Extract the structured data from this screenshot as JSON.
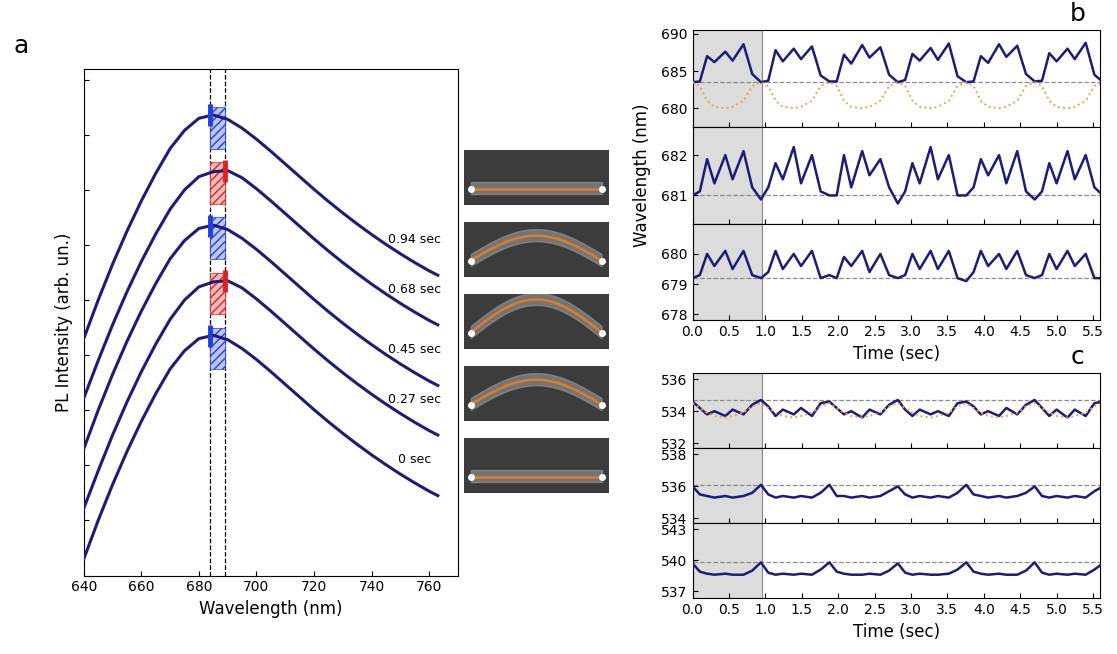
{
  "chart_data": [
    {
      "type": "line",
      "panel": "a",
      "x_label": "Wavelength (nm)",
      "y_label": "PL Intensity (arb. un.)",
      "xlim": [
        640,
        770
      ],
      "xticks": [
        640,
        660,
        680,
        700,
        720,
        740,
        760
      ],
      "ylim": [
        0,
        9.2
      ],
      "yticks": [
        0,
        1,
        2,
        3,
        4,
        5,
        6,
        7,
        8,
        9
      ],
      "tick_labels": "x",
      "reference_lines": [
        684,
        689
      ],
      "x": [
        640,
        645,
        650,
        655,
        660,
        665,
        670,
        675,
        680,
        685,
        690,
        695,
        700,
        705,
        710,
        715,
        720,
        725,
        730,
        735,
        740,
        745,
        750,
        755,
        760,
        763
      ],
      "series": [
        {
          "name": "0 sec",
          "type": "line",
          "color": "#1c1c7a",
          "values": [
            0.3,
            1.0,
            1.65,
            2.25,
            2.8,
            3.3,
            3.75,
            4.08,
            4.3,
            4.36,
            4.28,
            4.12,
            3.92,
            3.7,
            3.47,
            3.24,
            3.01,
            2.79,
            2.58,
            2.38,
            2.19,
            2.01,
            1.84,
            1.68,
            1.53,
            1.45
          ]
        },
        {
          "name": "0.27 sec",
          "type": "line",
          "color": "#1c1c7a",
          "values": [
            1.22,
            1.9,
            2.55,
            3.15,
            3.7,
            4.2,
            4.65,
            5.0,
            5.24,
            5.33,
            5.35,
            5.22,
            5.02,
            4.8,
            4.57,
            4.34,
            4.11,
            3.89,
            3.68,
            3.48,
            3.29,
            3.11,
            2.94,
            2.78,
            2.63,
            2.55
          ]
        },
        {
          "name": "0.45 sec",
          "type": "line",
          "color": "#1c1c7a",
          "values": [
            2.3,
            3.0,
            3.65,
            4.25,
            4.8,
            5.3,
            5.75,
            6.08,
            6.3,
            6.36,
            6.28,
            6.12,
            5.92,
            5.7,
            5.47,
            5.24,
            5.01,
            4.79,
            4.58,
            4.38,
            4.19,
            4.01,
            3.84,
            3.68,
            3.53,
            3.45
          ]
        },
        {
          "name": "0.68 sec",
          "type": "line",
          "color": "#1c1c7a",
          "values": [
            3.22,
            3.9,
            4.55,
            5.15,
            5.7,
            6.2,
            6.65,
            7.0,
            7.24,
            7.33,
            7.35,
            7.22,
            7.02,
            6.8,
            6.57,
            6.34,
            6.11,
            5.89,
            5.68,
            5.48,
            5.29,
            5.11,
            4.94,
            4.78,
            4.63,
            4.55
          ]
        },
        {
          "name": "0.94 sec",
          "type": "line",
          "color": "#1c1c7a",
          "values": [
            4.3,
            5.0,
            5.65,
            6.25,
            6.8,
            7.3,
            7.75,
            8.08,
            8.3,
            8.36,
            8.28,
            8.12,
            7.92,
            7.7,
            7.47,
            7.24,
            7.01,
            6.79,
            6.58,
            6.38,
            6.19,
            6.01,
            5.84,
            5.68,
            5.53,
            5.45
          ]
        },
        {
          "type": "scatter",
          "marker": "vline",
          "color": "#1f3fe0",
          "x": [
            684,
            684,
            684
          ],
          "values": [
            4.35,
            6.35,
            8.35
          ]
        },
        {
          "type": "scatter",
          "marker": "vline",
          "color": "#e02020",
          "x": [
            689,
            689
          ],
          "values": [
            5.35,
            7.35
          ]
        }
      ]
    },
    {
      "type": "line",
      "panel": "b",
      "x_label": "Time (sec)",
      "y_label": "Wavelength (nm)",
      "xlim": [
        0,
        5.6
      ],
      "xticks": [
        {
          "value": 0,
          "label": "0.0"
        },
        {
          "value": 0.5,
          "label": "0.5"
        },
        {
          "value": 1,
          "label": "1.0"
        },
        {
          "value": 1.5,
          "label": "1.5"
        },
        {
          "value": 2,
          "label": "2.0"
        },
        {
          "value": 2.5,
          "label": "2.5"
        },
        {
          "value": 3,
          "label": "3.0"
        },
        {
          "value": 3.5,
          "label": "3.5"
        },
        {
          "value": 4,
          "label": "4.0"
        },
        {
          "value": 4.5,
          "label": "4.5"
        },
        {
          "value": 5,
          "label": "5.0"
        },
        {
          "value": 5.5,
          "label": "5.5"
        }
      ],
      "highlight": [
        0,
        0.95
      ],
      "x": [
        0,
        0.1,
        0.2,
        0.3,
        0.45,
        0.55,
        0.7,
        0.82,
        0.94,
        1.04,
        1.14,
        1.24,
        1.39,
        1.49,
        1.64,
        1.76,
        1.88,
        1.98,
        2.08,
        2.18,
        2.33,
        2.43,
        2.58,
        2.7,
        2.82,
        2.92,
        3.02,
        3.12,
        3.27,
        3.37,
        3.52,
        3.64,
        3.76,
        3.86,
        3.96,
        4.06,
        4.21,
        4.31,
        4.46,
        4.58,
        4.7,
        4.8,
        4.9,
        5.0,
        5.15,
        5.25,
        5.4,
        5.52,
        5.64
      ],
      "subplots": [
        {
          "ylim": [
            677.5,
            690.5
          ],
          "yticks": [
            680,
            685,
            690
          ],
          "baseline": 683.5,
          "tick_labels": "y",
          "series": [
            {
              "color": "#1c1c7a",
              "line_style": "solid",
              "values": [
                683.5,
                683.6,
                687.0,
                686.2,
                687.6,
                686.4,
                688.6,
                684.6,
                683.5,
                683.7,
                687.8,
                686.3,
                688.0,
                686.6,
                688.3,
                684.4,
                683.6,
                683.6,
                687.2,
                686.0,
                688.5,
                686.8,
                688.2,
                684.5,
                683.5,
                683.8,
                687.3,
                686.4,
                688.1,
                686.5,
                688.7,
                684.3,
                683.5,
                683.6,
                687.0,
                686.1,
                688.6,
                686.9,
                688.4,
                684.6,
                683.6,
                683.7,
                687.4,
                686.3,
                688.0,
                686.6,
                688.8,
                684.5,
                683.5
              ]
            },
            {
              "color": "#f5a03c",
              "line_style": "dotted",
              "values": [
                683.5,
                683.0,
                681.0,
                680.2,
                680.0,
                680.2,
                681.0,
                683.0,
                683.5,
                683.0,
                681.0,
                680.2,
                680.0,
                680.2,
                681.0,
                683.0,
                683.5,
                683.0,
                681.0,
                680.2,
                680.0,
                680.2,
                681.0,
                683.0,
                683.5,
                683.0,
                681.0,
                680.2,
                680.0,
                680.2,
                681.0,
                683.0,
                683.5,
                683.0,
                681.0,
                680.2,
                680.0,
                680.2,
                681.0,
                683.0,
                683.5,
                683.0,
                681.0,
                680.2,
                680.0,
                680.2,
                681.0,
                683.0,
                683.5
              ]
            }
          ]
        },
        {
          "ylim": [
            680.3,
            682.7
          ],
          "yticks": [
            681,
            682
          ],
          "baseline": 681.0,
          "tick_labels": "y",
          "series": [
            {
              "color": "#1c1c7a",
              "line_style": "solid",
              "values": [
                681.0,
                681.1,
                681.9,
                681.3,
                682.0,
                681.4,
                682.1,
                681.2,
                680.9,
                681.2,
                681.8,
                681.4,
                682.2,
                681.3,
                682.0,
                681.1,
                681.0,
                681.0,
                682.0,
                681.2,
                682.1,
                681.5,
                681.9,
                681.2,
                680.8,
                681.1,
                681.8,
                681.3,
                682.2,
                681.4,
                682.0,
                681.0,
                681.0,
                681.2,
                681.9,
                681.5,
                682.0,
                681.3,
                682.1,
                681.1,
                680.9,
                681.1,
                681.8,
                681.3,
                682.1,
                681.4,
                682.0,
                681.2,
                681.0
              ]
            }
          ]
        },
        {
          "ylim": [
            677.8,
            681.0
          ],
          "yticks": [
            678,
            679,
            680
          ],
          "baseline": 679.2,
          "series": [
            {
              "color": "#1c1c7a",
              "line_style": "solid",
              "values": [
                679.2,
                679.3,
                680.0,
                679.6,
                680.1,
                679.5,
                680.1,
                679.3,
                679.2,
                679.4,
                680.1,
                679.5,
                680.0,
                679.6,
                680.1,
                679.2,
                679.3,
                679.2,
                679.9,
                679.6,
                680.1,
                679.4,
                680.0,
                679.3,
                679.2,
                679.3,
                680.0,
                679.5,
                680.1,
                679.5,
                680.1,
                679.2,
                679.1,
                679.4,
                680.1,
                679.6,
                680.0,
                679.5,
                680.1,
                679.3,
                679.2,
                679.3,
                680.0,
                679.5,
                680.1,
                679.6,
                680.0,
                679.2,
                679.2
              ]
            }
          ]
        }
      ]
    },
    {
      "type": "line",
      "panel": "c",
      "x_label": "Time (sec)",
      "xlim": [
        0,
        5.6
      ],
      "xticks": [
        {
          "value": 0,
          "label": "0.0"
        },
        {
          "value": 0.5,
          "label": "0.5"
        },
        {
          "value": 1,
          "label": "1.0"
        },
        {
          "value": 1.5,
          "label": "1.5"
        },
        {
          "value": 2,
          "label": "2.0"
        },
        {
          "value": 2.5,
          "label": "2.5"
        },
        {
          "value": 3,
          "label": "3.0"
        },
        {
          "value": 3.5,
          "label": "3.5"
        },
        {
          "value": 4,
          "label": "4.0"
        },
        {
          "value": 4.5,
          "label": "4.5"
        },
        {
          "value": 5,
          "label": "5.0"
        },
        {
          "value": 5.5,
          "label": "5.5"
        }
      ],
      "highlight": [
        0,
        0.95
      ],
      "x": [
        0,
        0.1,
        0.2,
        0.3,
        0.45,
        0.55,
        0.7,
        0.82,
        0.94,
        1.04,
        1.14,
        1.24,
        1.39,
        1.49,
        1.64,
        1.76,
        1.88,
        1.98,
        2.08,
        2.18,
        2.33,
        2.43,
        2.58,
        2.7,
        2.82,
        2.92,
        3.02,
        3.12,
        3.27,
        3.37,
        3.52,
        3.64,
        3.76,
        3.86,
        3.96,
        4.06,
        4.21,
        4.31,
        4.46,
        4.58,
        4.7,
        4.8,
        4.9,
        5.0,
        5.15,
        5.25,
        5.4,
        5.52,
        5.64
      ],
      "subplots": [
        {
          "ylim": [
            531.7,
            536.4
          ],
          "yticks": [
            532,
            534,
            536
          ],
          "baseline": 534.7,
          "tick_labels": "y",
          "series": [
            {
              "color": "#1c1c7a",
              "line_style": "solid",
              "values": [
                534.6,
                534.2,
                533.8,
                534.0,
                533.7,
                534.1,
                533.8,
                534.4,
                534.7,
                534.3,
                533.7,
                534.1,
                533.8,
                534.2,
                533.7,
                534.5,
                534.6,
                534.2,
                533.8,
                534.0,
                533.6,
                534.1,
                533.8,
                534.4,
                534.7,
                534.1,
                533.7,
                534.1,
                533.8,
                534.0,
                533.7,
                534.5,
                534.6,
                534.3,
                533.8,
                534.0,
                533.7,
                534.2,
                533.8,
                534.4,
                534.7,
                534.2,
                533.7,
                534.1,
                533.6,
                534.1,
                533.7,
                534.5,
                534.6
              ]
            },
            {
              "color": "#f5a03c",
              "line_style": "dotted",
              "values": [
                534.5,
                534.2,
                533.9,
                533.7,
                533.6,
                533.7,
                533.9,
                534.3,
                534.5,
                534.2,
                533.9,
                533.7,
                533.6,
                533.7,
                533.9,
                534.3,
                534.5,
                534.2,
                533.9,
                533.7,
                533.6,
                533.7,
                533.9,
                534.3,
                534.5,
                534.2,
                533.9,
                533.7,
                533.6,
                533.7,
                533.9,
                534.3,
                534.5,
                534.2,
                533.9,
                533.7,
                533.6,
                533.7,
                533.9,
                534.3,
                534.5,
                534.2,
                533.9,
                533.7,
                533.6,
                533.7,
                533.9,
                534.3,
                534.5
              ]
            }
          ]
        },
        {
          "ylim": [
            533.7,
            538.4
          ],
          "yticks": [
            534,
            536,
            538
          ],
          "baseline": 536.1,
          "tick_labels": "y",
          "series": [
            {
              "color": "#1c1c7a",
              "line_style": "solid",
              "values": [
                536.0,
                535.5,
                535.4,
                535.3,
                535.4,
                535.3,
                535.4,
                535.6,
                536.1,
                535.5,
                535.3,
                535.4,
                535.3,
                535.4,
                535.3,
                535.6,
                536.1,
                535.4,
                535.4,
                535.3,
                535.4,
                535.3,
                535.4,
                535.7,
                536.0,
                535.5,
                535.3,
                535.4,
                535.3,
                535.4,
                535.3,
                535.6,
                536.1,
                535.5,
                535.4,
                535.3,
                535.4,
                535.3,
                535.4,
                535.6,
                536.0,
                535.4,
                535.3,
                535.4,
                535.3,
                535.4,
                535.3,
                535.7,
                536.0
              ]
            }
          ]
        },
        {
          "ylim": [
            536.3,
            543.6
          ],
          "yticks": [
            537,
            540,
            543
          ],
          "baseline": 539.8,
          "series": [
            {
              "color": "#1c1c7a",
              "line_style": "solid",
              "values": [
                539.7,
                538.9,
                538.7,
                538.6,
                538.7,
                538.6,
                538.6,
                539.0,
                539.8,
                538.8,
                538.6,
                538.7,
                538.6,
                538.7,
                538.6,
                539.1,
                539.8,
                538.9,
                538.7,
                538.6,
                538.6,
                538.7,
                538.6,
                539.0,
                539.7,
                538.8,
                538.6,
                538.7,
                538.6,
                538.6,
                538.7,
                539.1,
                539.8,
                538.9,
                538.7,
                538.6,
                538.7,
                538.6,
                538.6,
                539.0,
                539.8,
                538.8,
                538.6,
                538.7,
                538.6,
                538.7,
                538.6,
                539.1,
                539.7
              ]
            }
          ]
        }
      ]
    }
  ]
}
